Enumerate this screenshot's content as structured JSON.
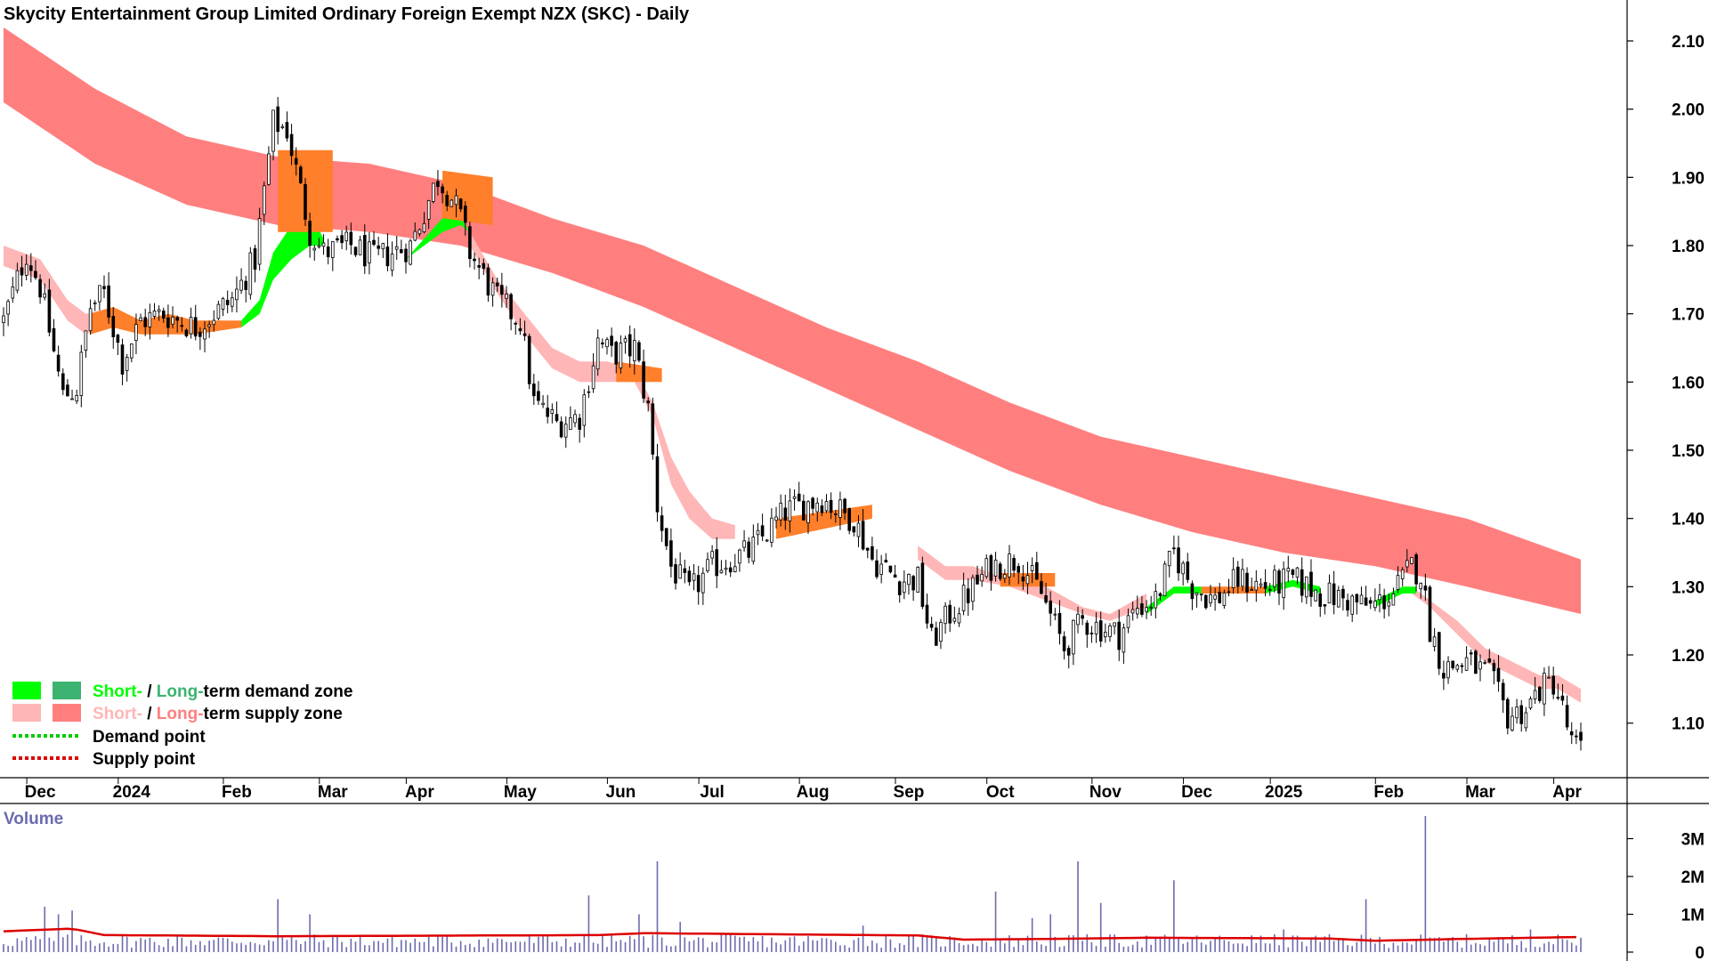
{
  "title": "Skycity Entertainment Group Limited Ordinary Foreign Exempt NZX (SKC) - Daily",
  "colors": {
    "short_demand": "#00ff00",
    "long_demand": "#3cb371",
    "short_supply": "#ffb6b6",
    "long_supply": "#ff7f7f",
    "overlap": "#ff7f2a",
    "demand_point": "#00cc00",
    "supply_point": "#dd0000",
    "volume_bar": "#6b6bb0",
    "volume_avg": "#dd0000",
    "volume_title": "#6b6bb0"
  },
  "legend": {
    "demand_short": "Short-",
    "demand_sep": " / ",
    "demand_long": "Long-",
    "demand_rest": "term demand zone",
    "supply_short": "Short-",
    "supply_sep": " / ",
    "supply_long": "Long-",
    "supply_rest": "term supply zone",
    "demand_point": "Demand point",
    "supply_point": "Supply point"
  },
  "volume_panel": {
    "title": "Volume",
    "tick_labels": [
      "3M",
      "2M",
      "1M",
      "0"
    ]
  },
  "chart_data": {
    "type": "candlestick",
    "title": "Skycity Entertainment Group Limited Ordinary Foreign Exempt NZX (SKC) - Daily",
    "price_axis": {
      "ylim": [
        1.02,
        2.16
      ],
      "ticks": [
        2.1,
        2.0,
        1.9,
        1.8,
        1.7,
        1.6,
        1.5,
        1.4,
        1.3,
        1.2,
        1.1
      ],
      "tick_labels": [
        "2.10",
        "2.00",
        "1.90",
        "1.80",
        "1.70",
        "1.60",
        "1.50",
        "1.40",
        "1.30",
        "1.20",
        "1.10"
      ]
    },
    "time_axis": {
      "labels": [
        "Dec",
        "2024",
        "Feb",
        "Mar",
        "Apr",
        "May",
        "Jun",
        "Jul",
        "Aug",
        "Sep",
        "Oct",
        "Nov",
        "Dec",
        "2025",
        "Feb",
        "Mar",
        "Apr"
      ],
      "positions": [
        8,
        28,
        51,
        72,
        91,
        113,
        135,
        155,
        177,
        198,
        218,
        241,
        261,
        280,
        303,
        323,
        342
      ]
    },
    "n_bars": 346,
    "price_path": [
      [
        0,
        1.69
      ],
      [
        5,
        1.79
      ],
      [
        8,
        1.74
      ],
      [
        13,
        1.58
      ],
      [
        16,
        1.59
      ],
      [
        19,
        1.71
      ],
      [
        22,
        1.73
      ],
      [
        26,
        1.63
      ],
      [
        30,
        1.69
      ],
      [
        35,
        1.7
      ],
      [
        42,
        1.68
      ],
      [
        50,
        1.72
      ],
      [
        55,
        1.78
      ],
      [
        59,
        1.98
      ],
      [
        62,
        1.97
      ],
      [
        67,
        1.82
      ],
      [
        70,
        1.79
      ],
      [
        76,
        1.8
      ],
      [
        81,
        1.78
      ],
      [
        89,
        1.8
      ],
      [
        95,
        1.9
      ],
      [
        98,
        1.87
      ],
      [
        100,
        1.84
      ],
      [
        102,
        1.79
      ],
      [
        108,
        1.72
      ],
      [
        113,
        1.69
      ],
      [
        116,
        1.57
      ],
      [
        121,
        1.54
      ],
      [
        126,
        1.55
      ],
      [
        130,
        1.66
      ],
      [
        133,
        1.64
      ],
      [
        138,
        1.65
      ],
      [
        141,
        1.56
      ],
      [
        143,
        1.42
      ],
      [
        146,
        1.33
      ],
      [
        150,
        1.29
      ],
      [
        155,
        1.33
      ],
      [
        159,
        1.34
      ],
      [
        163,
        1.35
      ],
      [
        167,
        1.38
      ],
      [
        171,
        1.41
      ],
      [
        175,
        1.42
      ],
      [
        179,
        1.43
      ],
      [
        183,
        1.41
      ],
      [
        186,
        1.4
      ],
      [
        190,
        1.34
      ],
      [
        196,
        1.31
      ],
      [
        200,
        1.31
      ],
      [
        203,
        1.22
      ],
      [
        207,
        1.26
      ],
      [
        211,
        1.29
      ],
      [
        216,
        1.33
      ],
      [
        222,
        1.34
      ],
      [
        227,
        1.29
      ],
      [
        232,
        1.21
      ],
      [
        236,
        1.25
      ],
      [
        240,
        1.24
      ],
      [
        244,
        1.23
      ],
      [
        248,
        1.27
      ],
      [
        252,
        1.28
      ],
      [
        256,
        1.35
      ],
      [
        260,
        1.3
      ],
      [
        265,
        1.28
      ],
      [
        270,
        1.31
      ],
      [
        276,
        1.3
      ],
      [
        282,
        1.31
      ],
      [
        288,
        1.29
      ],
      [
        294,
        1.28
      ],
      [
        299,
        1.27
      ],
      [
        304,
        1.29
      ],
      [
        308,
        1.33
      ],
      [
        310,
        1.32
      ],
      [
        312,
        1.24
      ],
      [
        315,
        1.18
      ],
      [
        320,
        1.19
      ],
      [
        325,
        1.17
      ],
      [
        329,
        1.11
      ],
      [
        333,
        1.12
      ],
      [
        336,
        1.15
      ],
      [
        339,
        1.16
      ],
      [
        341,
        1.12
      ],
      [
        343,
        1.07
      ],
      [
        345,
        1.06
      ]
    ],
    "long_term_supply_zone": {
      "upper": [
        [
          0,
          2.12
        ],
        [
          20,
          2.03
        ],
        [
          40,
          1.96
        ],
        [
          60,
          1.93
        ],
        [
          80,
          1.92
        ],
        [
          100,
          1.89
        ],
        [
          120,
          1.84
        ],
        [
          140,
          1.8
        ],
        [
          160,
          1.74
        ],
        [
          180,
          1.68
        ],
        [
          200,
          1.63
        ],
        [
          220,
          1.57
        ],
        [
          240,
          1.52
        ],
        [
          260,
          1.49
        ],
        [
          280,
          1.46
        ],
        [
          300,
          1.43
        ],
        [
          320,
          1.4
        ],
        [
          345,
          1.34
        ]
      ],
      "lower": [
        [
          0,
          2.01
        ],
        [
          20,
          1.92
        ],
        [
          40,
          1.86
        ],
        [
          60,
          1.83
        ],
        [
          80,
          1.82
        ],
        [
          100,
          1.8
        ],
        [
          120,
          1.76
        ],
        [
          140,
          1.71
        ],
        [
          160,
          1.65
        ],
        [
          180,
          1.59
        ],
        [
          200,
          1.53
        ],
        [
          220,
          1.47
        ],
        [
          240,
          1.42
        ],
        [
          260,
          1.38
        ],
        [
          280,
          1.35
        ],
        [
          300,
          1.33
        ],
        [
          320,
          1.3
        ],
        [
          345,
          1.26
        ]
      ]
    },
    "short_term_supply_zone": {
      "upper": [
        [
          0,
          1.8
        ],
        [
          8,
          1.78
        ],
        [
          14,
          1.72
        ],
        [
          18,
          1.7
        ],
        [
          24,
          1.71
        ],
        [
          102,
          1.82
        ],
        [
          108,
          1.75
        ],
        [
          114,
          1.7
        ],
        [
          120,
          1.65
        ],
        [
          126,
          1.63
        ],
        [
          132,
          1.63
        ],
        [
          138,
          1.62
        ],
        [
          142,
          1.57
        ],
        [
          146,
          1.49
        ],
        [
          150,
          1.44
        ],
        [
          155,
          1.4
        ],
        [
          160,
          1.39
        ],
        [
          200,
          1.36
        ],
        [
          206,
          1.33
        ],
        [
          212,
          1.33
        ],
        [
          220,
          1.31
        ],
        [
          228,
          1.3
        ],
        [
          236,
          1.27
        ],
        [
          242,
          1.26
        ],
        [
          250,
          1.29
        ],
        [
          308,
          1.3
        ],
        [
          312,
          1.28
        ],
        [
          318,
          1.25
        ],
        [
          324,
          1.21
        ],
        [
          330,
          1.19
        ],
        [
          336,
          1.17
        ],
        [
          340,
          1.17
        ],
        [
          345,
          1.15
        ]
      ],
      "lower": [
        [
          0,
          1.77
        ],
        [
          8,
          1.75
        ],
        [
          14,
          1.69
        ],
        [
          18,
          1.67
        ],
        [
          24,
          1.69
        ],
        [
          102,
          1.8
        ],
        [
          108,
          1.73
        ],
        [
          114,
          1.67
        ],
        [
          120,
          1.62
        ],
        [
          126,
          1.6
        ],
        [
          132,
          1.6
        ],
        [
          138,
          1.6
        ],
        [
          142,
          1.55
        ],
        [
          146,
          1.45
        ],
        [
          150,
          1.4
        ],
        [
          155,
          1.37
        ],
        [
          160,
          1.37
        ],
        [
          200,
          1.34
        ],
        [
          206,
          1.31
        ],
        [
          212,
          1.31
        ],
        [
          220,
          1.3
        ],
        [
          228,
          1.28
        ],
        [
          236,
          1.26
        ],
        [
          242,
          1.25
        ],
        [
          250,
          1.27
        ],
        [
          308,
          1.29
        ],
        [
          312,
          1.27
        ],
        [
          318,
          1.23
        ],
        [
          324,
          1.19
        ],
        [
          330,
          1.17
        ],
        [
          336,
          1.15
        ],
        [
          340,
          1.15
        ],
        [
          345,
          1.13
        ]
      ]
    },
    "short_term_demand_zone": [
      {
        "upper": [
          [
            52,
            1.69
          ],
          [
            56,
            1.72
          ],
          [
            59,
            1.79
          ],
          [
            63,
            1.83
          ],
          [
            67,
            1.85
          ],
          [
            70,
            1.81
          ]
        ],
        "lower": [
          [
            52,
            1.68
          ],
          [
            56,
            1.7
          ],
          [
            59,
            1.75
          ],
          [
            63,
            1.78
          ],
          [
            67,
            1.8
          ],
          [
            70,
            1.8
          ]
        ]
      },
      {
        "upper": [
          [
            88,
            1.78
          ],
          [
            92,
            1.81
          ],
          [
            96,
            1.84
          ],
          [
            100,
            1.84
          ],
          [
            102,
            1.82
          ]
        ],
        "lower": [
          [
            88,
            1.78
          ],
          [
            92,
            1.8
          ],
          [
            96,
            1.82
          ],
          [
            100,
            1.83
          ],
          [
            102,
            1.82
          ]
        ]
      },
      {
        "upper": [
          [
            250,
            1.27
          ],
          [
            256,
            1.3
          ],
          [
            262,
            1.3
          ]
        ],
        "lower": [
          [
            250,
            1.26
          ],
          [
            256,
            1.29
          ],
          [
            262,
            1.29
          ]
        ]
      },
      {
        "upper": [
          [
            276,
            1.3
          ],
          [
            282,
            1.31
          ],
          [
            288,
            1.3
          ]
        ],
        "lower": [
          [
            276,
            1.29
          ],
          [
            282,
            1.3
          ],
          [
            288,
            1.29
          ]
        ]
      },
      {
        "upper": [
          [
            300,
            1.28
          ],
          [
            306,
            1.3
          ],
          [
            309,
            1.3
          ]
        ],
        "lower": [
          [
            300,
            1.27
          ],
          [
            306,
            1.29
          ],
          [
            309,
            1.29
          ]
        ]
      }
    ],
    "overlap_zones": [
      {
        "upper": [
          [
            19,
            1.7
          ],
          [
            24,
            1.71
          ],
          [
            30,
            1.69
          ],
          [
            36,
            1.7
          ],
          [
            42,
            1.69
          ],
          [
            52,
            1.69
          ]
        ],
        "lower": [
          [
            19,
            1.67
          ],
          [
            24,
            1.68
          ],
          [
            30,
            1.67
          ],
          [
            36,
            1.67
          ],
          [
            42,
            1.67
          ],
          [
            52,
            1.68
          ]
        ]
      },
      {
        "upper": [
          [
            60,
            1.94
          ],
          [
            72,
            1.94
          ]
        ],
        "lower": [
          [
            60,
            1.82
          ],
          [
            72,
            1.82
          ]
        ]
      },
      {
        "upper": [
          [
            96,
            1.91
          ],
          [
            107,
            1.9
          ]
        ],
        "lower": [
          [
            96,
            1.84
          ],
          [
            107,
            1.83
          ]
        ]
      },
      {
        "upper": [
          [
            134,
            1.63
          ],
          [
            144,
            1.62
          ]
        ],
        "lower": [
          [
            134,
            1.6
          ],
          [
            144,
            1.6
          ]
        ]
      },
      {
        "upper": [
          [
            169,
            1.4
          ],
          [
            190,
            1.42
          ]
        ],
        "lower": [
          [
            169,
            1.37
          ],
          [
            190,
            1.4
          ]
        ]
      },
      {
        "upper": [
          [
            218,
            1.32
          ],
          [
            230,
            1.32
          ]
        ],
        "lower": [
          [
            218,
            1.3
          ],
          [
            230,
            1.3
          ]
        ]
      },
      {
        "upper": [
          [
            262,
            1.3
          ],
          [
            276,
            1.3
          ]
        ],
        "lower": [
          [
            262,
            1.29
          ],
          [
            276,
            1.29
          ]
        ]
      }
    ],
    "volume": {
      "ylim": [
        0,
        3.6
      ],
      "unit": "M",
      "ticks": [
        3,
        2,
        1,
        0
      ],
      "baseline": 0.28,
      "average": [
        [
          0,
          0.55
        ],
        [
          15,
          0.62
        ],
        [
          22,
          0.45
        ],
        [
          60,
          0.42
        ],
        [
          130,
          0.45
        ],
        [
          140,
          0.5
        ],
        [
          200,
          0.44
        ],
        [
          210,
          0.33
        ],
        [
          230,
          0.35
        ],
        [
          250,
          0.38
        ],
        [
          290,
          0.36
        ],
        [
          300,
          0.3
        ],
        [
          320,
          0.35
        ],
        [
          345,
          0.4
        ]
      ],
      "spikes": [
        [
          9,
          1.2
        ],
        [
          12,
          1.0
        ],
        [
          15,
          1.1
        ],
        [
          60,
          1.4
        ],
        [
          67,
          1.0
        ],
        [
          128,
          1.5
        ],
        [
          143,
          2.4
        ],
        [
          217,
          1.6
        ],
        [
          235,
          2.4
        ],
        [
          240,
          1.3
        ],
        [
          256,
          1.9
        ],
        [
          298,
          1.4
        ],
        [
          311,
          3.6
        ],
        [
          139,
          1.0
        ],
        [
          148,
          0.8
        ],
        [
          188,
          0.7
        ],
        [
          225,
          0.9
        ],
        [
          229,
          1.0
        ],
        [
          280,
          0.6
        ],
        [
          334,
          0.6
        ]
      ]
    }
  }
}
